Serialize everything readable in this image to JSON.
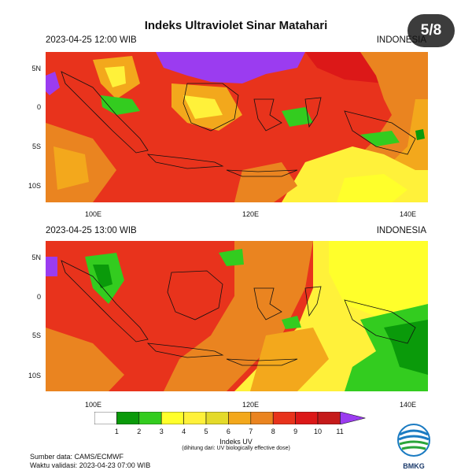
{
  "title": "Indeks Ultraviolet Sinar Matahari",
  "slide_counter": "5/8",
  "panels": [
    {
      "time": "2023-04-25  12:00 WIB",
      "region": "INDONESIA"
    },
    {
      "time": "2023-04-25  13:00 WIB",
      "region": "INDONESIA"
    }
  ],
  "lat_ticks": [
    "5N",
    "0",
    "5S",
    "10S"
  ],
  "lon_ticks": [
    "100E",
    "120E",
    "140E"
  ],
  "legend": {
    "levels": [
      "1",
      "2",
      "3",
      "4",
      "5",
      "6",
      "7",
      "8",
      "9",
      "10",
      "11"
    ],
    "colors": [
      "#ffffff",
      "#0a9a0a",
      "#33cc1f",
      "#ffff2b",
      "#fff13a",
      "#e4da2a",
      "#f3a81c",
      "#ea8420",
      "#e8331c",
      "#dc1818",
      "#c51a1a",
      "#9b3cf0"
    ],
    "title": "Indeks UV",
    "subtitle": "(dihitung dari: UV biologically effective dose)"
  },
  "footer": {
    "source": "Sumber data: CAMS/ECMWF",
    "validity": "Waktu validasi: 2023-04-23 07:00 WIB"
  },
  "logo_text": "BMKG"
}
